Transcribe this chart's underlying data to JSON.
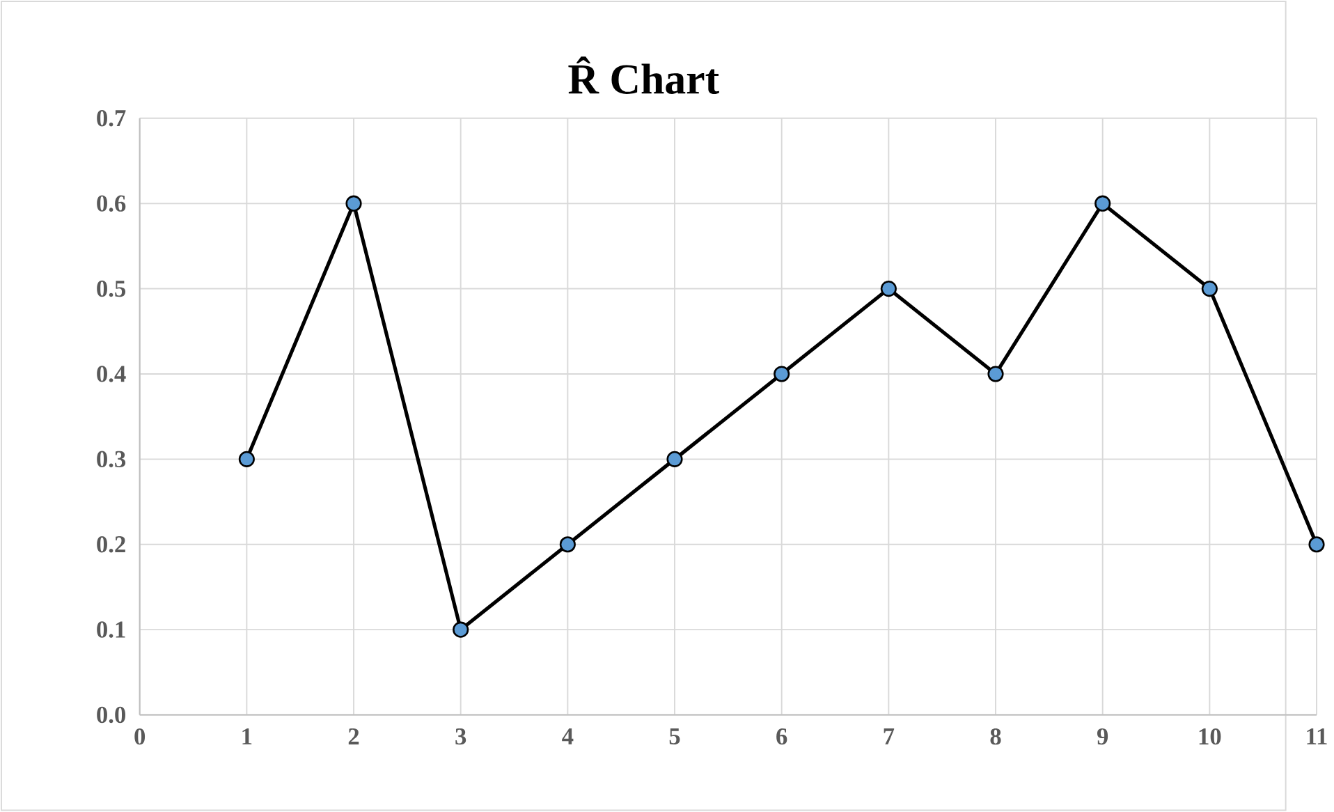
{
  "chart_data": {
    "type": "line",
    "title": "R̂ Chart",
    "x": [
      1,
      2,
      3,
      4,
      5,
      6,
      7,
      8,
      9,
      10,
      11
    ],
    "series": [
      {
        "color": "#000000",
        "values": [
          0.3,
          0.6,
          0.1,
          0.2,
          0.3,
          0.4,
          0.5,
          0.4,
          0.6,
          0.5,
          0.2
        ]
      }
    ],
    "xlim": [
      0,
      11
    ],
    "xticks": [
      0,
      1,
      2,
      3,
      4,
      5,
      6,
      7,
      8,
      9,
      10,
      11
    ],
    "ylim": [
      0,
      0.7
    ],
    "yticks": [
      {
        "value": 0,
        "label": "0.0"
      },
      0.1,
      0.2,
      0.3,
      0.4,
      0.5,
      0.6,
      0.7
    ],
    "grid": true,
    "marker": "circle",
    "line_style": "solid"
  }
}
